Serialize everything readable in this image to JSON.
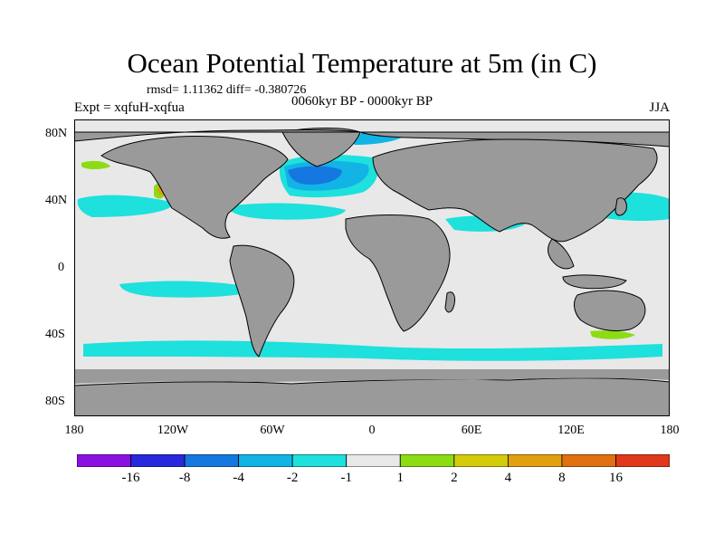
{
  "title": "Ocean Potential Temperature at 5m (in C)",
  "stats": "rmsd= 1.11362 diff= -0.380726",
  "experiment": "Expt = xqfuH-xqfua",
  "period": "0060kyr BP - 0000kyr BP",
  "season": "JJA",
  "axes": {
    "y_ticks": [
      "80N",
      "40N",
      "0",
      "40S",
      "80S"
    ],
    "x_ticks": [
      "180",
      "120W",
      "60W",
      "0",
      "60E",
      "120E",
      "180"
    ]
  },
  "colors": {
    "land": "#9a9a9a",
    "ocean_neutral": "#e8e8e8",
    "coastline": "#000000"
  },
  "colorbar": {
    "colors": [
      "#8a12e0",
      "#2828dc",
      "#1478e0",
      "#12b4e6",
      "#1ee0dc",
      "#e8e8e8",
      "#8cdc14",
      "#d4cc0a",
      "#e0a010",
      "#e07010",
      "#e0381a"
    ],
    "labels": [
      "-16",
      "-8",
      "-4",
      "-2",
      "-1",
      "1",
      "2",
      "4",
      "8",
      "16"
    ]
  }
}
